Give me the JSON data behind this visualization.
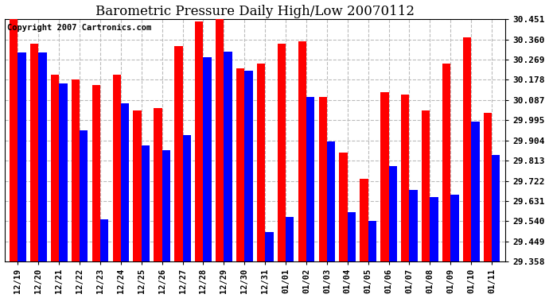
{
  "title": "Barometric Pressure Daily High/Low 20070112",
  "copyright": "Copyright 2007 Cartronics.com",
  "dates": [
    "12/19",
    "12/20",
    "12/21",
    "12/22",
    "12/23",
    "12/24",
    "12/25",
    "12/26",
    "12/27",
    "12/28",
    "12/29",
    "12/30",
    "12/31",
    "01/01",
    "01/02",
    "01/03",
    "01/04",
    "01/05",
    "01/06",
    "01/07",
    "01/08",
    "01/09",
    "01/10",
    "01/11"
  ],
  "highs": [
    30.45,
    30.34,
    30.2,
    30.178,
    30.155,
    30.2,
    30.04,
    30.05,
    30.33,
    30.44,
    30.45,
    30.23,
    30.25,
    30.34,
    30.35,
    30.1,
    29.85,
    29.73,
    30.12,
    30.11,
    30.04,
    30.25,
    30.37,
    30.03
  ],
  "lows": [
    30.3,
    30.3,
    30.16,
    29.95,
    29.55,
    30.07,
    29.88,
    29.86,
    29.93,
    30.28,
    30.305,
    30.22,
    29.49,
    29.56,
    30.1,
    29.9,
    29.58,
    29.54,
    29.79,
    29.68,
    29.65,
    29.66,
    29.99,
    29.84
  ],
  "ymin": 29.358,
  "ymax": 30.451,
  "yticks": [
    29.358,
    29.449,
    29.54,
    29.631,
    29.722,
    29.813,
    29.904,
    29.995,
    30.087,
    30.178,
    30.269,
    30.36,
    30.451
  ],
  "high_color": "#ff0000",
  "low_color": "#0000ff",
  "bg_color": "#ffffff",
  "grid_color": "#bbbbbb",
  "title_fontsize": 12,
  "copyright_fontsize": 7.5
}
